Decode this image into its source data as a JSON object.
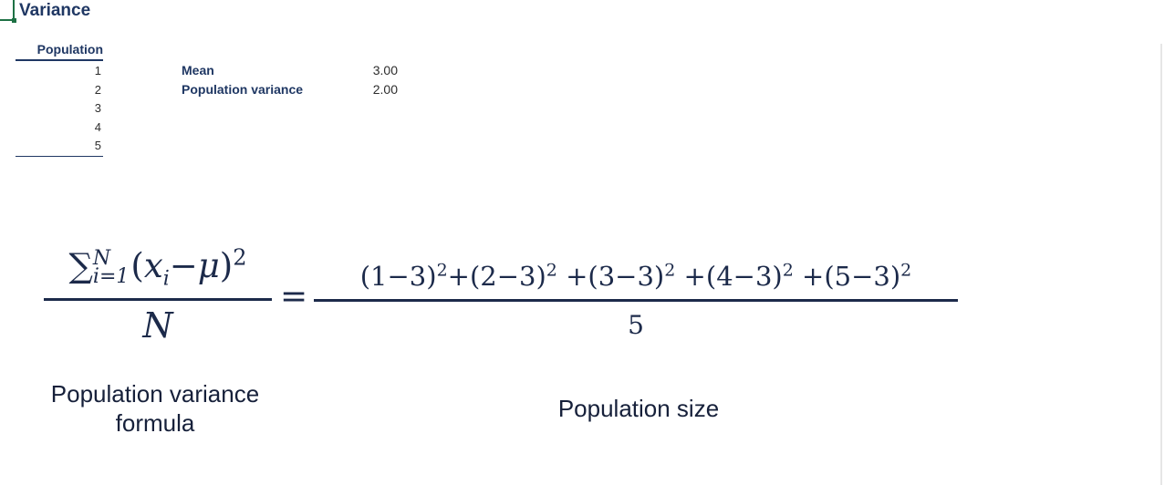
{
  "sheet": {
    "title": "Variance",
    "population": {
      "header": "Population",
      "values": [
        "1",
        "2",
        "3",
        "4",
        "5"
      ]
    },
    "stats": [
      {
        "label": "Mean",
        "value": "3.00"
      },
      {
        "label": "Population variance",
        "value": "2.00"
      }
    ]
  },
  "formula": {
    "sum_symbol": "∑",
    "upper_limit": "N",
    "lower_limit": "i=1",
    "term_open": "(",
    "x": "x",
    "x_index": "i",
    "minus": "−",
    "mu": "μ",
    "term_close": ")",
    "exponent": "2",
    "denominator": "N",
    "equals": "=",
    "expansion": [
      {
        "prefix": "",
        "term": "(1−3)",
        "exp": "2"
      },
      {
        "prefix": "+",
        "term": "(2−3)",
        "exp": "2"
      },
      {
        "prefix": " +",
        "term": "(3−3)",
        "exp": "2"
      },
      {
        "prefix": " +",
        "term": "(4−3)",
        "exp": "2"
      },
      {
        "prefix": " +",
        "term": "(5−3)",
        "exp": "2"
      }
    ],
    "expansion_denominator": "5"
  },
  "captions": {
    "formula_label": "Population variance formula",
    "size_label": "Population size"
  }
}
